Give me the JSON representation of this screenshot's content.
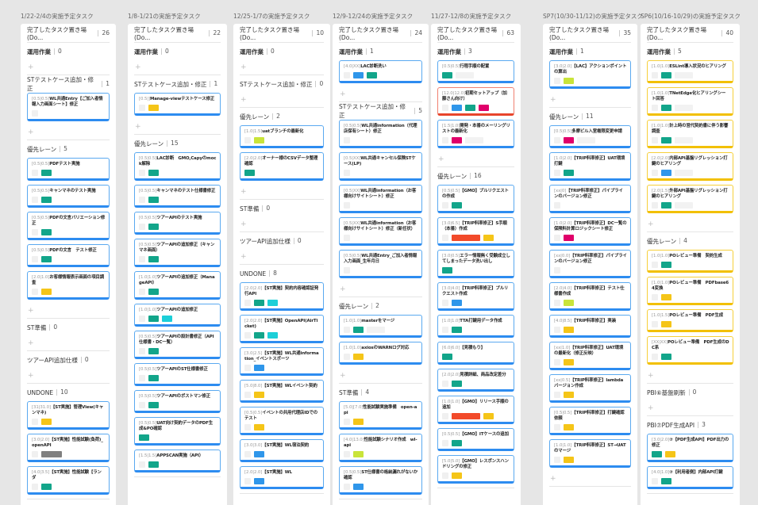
{
  "tag_colors": {
    "g": "#12a58a",
    "y": "#f5c518",
    "b": "#2f96ea",
    "c": "#1ccfd8",
    "l": "#c9e43a",
    "m": "#e0006a",
    "r": "#f24a2a",
    "k": "#808080"
  },
  "columns": [
    {
      "title": "1/22-2/4の実施予定タスク",
      "done_label": "完了したタスク置き場(Do...",
      "done_count": "26",
      "lanes": [
        {
          "name": "運用作業",
          "count": "0",
          "bold": true,
          "cards": [],
          "plus": true
        },
        {
          "name": "STテストケース追加・修正",
          "count": "1",
          "cards": [
            {
              "meta": "[0.5|0.5]",
              "title": "WL共通Entry【ご加入者情報入力画面シート】修正",
              "tags": [
                "s"
              ]
            }
          ],
          "plus": true
        },
        {
          "name": "優先レーン",
          "count": "5",
          "cards": [
            {
              "meta": "[0.5|0.5]",
              "title": "PDFテスト実施",
              "tags": [
                "s",
                "g"
              ]
            },
            {
              "meta": "[0.5|0.5]",
              "title": "キャンマネのテスト実施",
              "tags": [
                "s",
                "g"
              ]
            },
            {
              "meta": "[0.5|0.5]",
              "title": "PDFの文言バリエーション修正",
              "tags": [
                "s",
                "g"
              ]
            },
            {
              "meta": "[0.5|0.5]",
              "title": "PDFの文言　テスト修正",
              "tags": [
                "s",
                "g"
              ]
            },
            {
              "meta": "[2.0|1.0]",
              "title": "お客様情報表示画面の項目調査",
              "tags": [
                "s",
                "y"
              ]
            }
          ],
          "plus": true
        },
        {
          "name": "ST準備",
          "count": "0",
          "cards": [],
          "plus": true
        },
        {
          "name": "ツアーAPI追加仕様",
          "count": "0",
          "cards": [],
          "plus": true
        },
        {
          "name": "UNDONE",
          "count": "10",
          "cards": [
            {
              "meta": "[31|31.0]",
              "title": "【ST実施】管理View(キャンマネ)",
              "tags": [
                "s",
                "y"
              ]
            },
            {
              "meta": "[3.0|2.0]",
              "title": "【ST実施】性能試験(負荷)_openAPI",
              "tags": [
                "s",
                "k"
              ]
            },
            {
              "meta": "[4.0|3.5]",
              "title": "【ST実施】性能試験【ランダ",
              "tags": [
                "s",
                "g"
              ]
            }
          ]
        }
      ]
    },
    {
      "title": "1/8-1/21の実施予定タスク",
      "done_label": "完了したタスク置き場(Do...",
      "done_count": "22",
      "lanes": [
        {
          "name": "運用作業",
          "count": "0",
          "bold": true,
          "cards": [],
          "plus": true
        },
        {
          "name": "STテストケース追加・修正",
          "count": "1",
          "cards": [
            {
              "meta": "[0.5|]",
              "title": "Manage-viewテストケース修正",
              "tags": [
                "s",
                "y"
              ]
            }
          ],
          "plus": true
        },
        {
          "name": "優先レーン",
          "count": "15",
          "cards": [
            {
              "meta": "[0.5|0.5]",
              "title": "LAC診断　GMO,Capyのmock解除",
              "tags": [
                "s",
                "g"
              ]
            },
            {
              "meta": "[0.5|0.5]",
              "title": "キャンマネのテスト仕様書修正",
              "tags": [
                "s",
                "g"
              ]
            },
            {
              "meta": "[0.5|0.5]",
              "title": "ツアーAPIのテスト実施",
              "tags": [
                "s",
                "g"
              ]
            },
            {
              "meta": "[0.5|0.5]",
              "title": "ツアーAPIの追加修正（キャンマネ画面）",
              "tags": [
                "s",
                "g"
              ]
            },
            {
              "meta": "[1.0|1.0]",
              "title": "ツアーAPIの追加修正（ManageAPI）",
              "tags": [
                "s",
                "g"
              ]
            },
            {
              "meta": "[1.0|1.0]",
              "title": "ツアーAPIの追加修正",
              "tags": [
                "s",
                "g",
                "c"
              ]
            },
            {
              "meta": "[0.5|0.5]",
              "title": "ツアーAPIの設計書修正（API仕様書・DC一覧）",
              "tags": [
                "s",
                "g"
              ]
            },
            {
              "meta": "[0.5|0.5]",
              "title": "ツアーAPIのST仕様書修正",
              "tags": [
                "s",
                "g"
              ]
            },
            {
              "meta": "[0.5|0.5]",
              "title": "ツアーAPIのポストマン修正",
              "tags": [
                "s",
                "g"
              ]
            },
            {
              "meta": "[0.5|0.5]",
              "title": "UAT向け契約データのPDF生成&PO確認",
              "tags": [
                "g"
              ]
            },
            {
              "meta": "[1.5|1.5]",
              "title": "APPSCAN実施（API）",
              "tags": [
                "s",
                "g"
              ]
            }
          ]
        }
      ]
    },
    {
      "title": "12/25-1/7の実施予定タスク",
      "done_label": "完了したタスク置き場(Do...",
      "done_count": "10",
      "lanes": [
        {
          "name": "運用作業",
          "count": "0",
          "bold": true,
          "cards": [],
          "plus": true
        },
        {
          "name": "STテストケース追加・修正",
          "count": "0",
          "cards": [],
          "plus": true
        },
        {
          "name": "優先レーン",
          "count": "2",
          "cards": [
            {
              "meta": "[1.0|1.5]",
              "title": "uatブランチの最新化",
              "tags": [
                "s",
                "l"
              ]
            },
            {
              "meta": "[2.0|2.0]",
              "title": "オーナー様のCSVデータ整理確認",
              "tags": [
                "g"
              ]
            }
          ],
          "plus": true
        },
        {
          "name": "ST準備",
          "count": "0",
          "cards": [],
          "plus": true
        },
        {
          "name": "ツアーAPI追加仕様",
          "count": "0",
          "cards": [],
          "plus": true
        },
        {
          "name": "UNDONE",
          "count": "8",
          "cards": [
            {
              "meta": "[2.0|2.0]",
              "title": "【ST実施】契約内容確認証発行API",
              "tags": [
                "s",
                "g",
                "c"
              ]
            },
            {
              "meta": "[2.0|2.0]",
              "title": "【ST実施】OpenAPI(AirTicket)",
              "tags": [
                "s",
                "g",
                "c"
              ]
            },
            {
              "meta": "[3.0|2.5]",
              "title": "【ST実施】WL共通information_イベントスポーツ",
              "tags": [
                "s",
                "b"
              ]
            },
            {
              "meta": "[5.0|8.0]",
              "title": "【ST実施】WLイベント契約",
              "tags": [
                "s",
                "y"
              ]
            },
            {
              "meta": "[0.5|0.5]",
              "title": "イベントの共用代理店IDでのテスト",
              "tags": [
                "s",
                "y"
              ]
            },
            {
              "meta": "[3.0|3.0]",
              "title": "【ST実施】WL宿泊契約",
              "tags": [
                "s",
                "b"
              ]
            },
            {
              "meta": "[2.0|2.0]",
              "title": "【ST実施】WL",
              "tags": [
                "s",
                "b"
              ]
            }
          ]
        }
      ]
    },
    {
      "title": "12/9-12/24の実施予定タスク",
      "done_label": "完了したタスク置き場(Do...",
      "done_count": "24",
      "lanes": [
        {
          "name": "運用作業",
          "count": "1",
          "bold": true,
          "cards": [
            {
              "meta": "[4.0|XX]",
              "title": "LAC診断洗い",
              "tags": [
                "s",
                "b",
                "g"
              ]
            }
          ],
          "plus": true
        },
        {
          "name": "STテストケース追加・修正",
          "count": "5",
          "cards": [
            {
              "meta": "[0.5|0.5]",
              "title": "WL共通information（代理店保有シート）修正",
              "tags": [
                "s"
              ]
            },
            {
              "meta": "[0.5|XX]",
              "title": "WL共通キャンセル保険STケース(LP)",
              "tags": [
                "s"
              ]
            },
            {
              "meta": "[0.5|XX]",
              "title": "WL共通information（お客様向けサイトシート）修正",
              "tags": [
                "s"
              ]
            },
            {
              "meta": "[0.5|XX]",
              "title": "WL共通information（お客様向けサイトシート）修正（新任状）",
              "tags": [
                "s"
              ]
            },
            {
              "meta": "[0.5|0.5]",
              "title": "WL共通Entry_ご加入者情報入力画面_生年月日",
              "tags": [
                "s"
              ]
            }
          ],
          "plus": true
        },
        {
          "name": "優先レーン",
          "count": "2",
          "cards": [
            {
              "meta": "[1.0|1.0]",
              "title": "masterをマージ",
              "tags": [
                "s",
                "g",
                "e"
              ]
            },
            {
              "meta": "[1.0|1.0]",
              "title": "axiosのWARNログ対応",
              "tags": [
                "s",
                "y"
              ]
            }
          ],
          "plus": true
        },
        {
          "name": "ST準備",
          "count": "4",
          "cards": [
            {
              "meta": "[5.0|[7.0]",
              "title": "性能試験実施準備　open-api",
              "tags": [
                "s",
                "y"
              ]
            },
            {
              "meta": "[4.0|13.0]",
              "title": "性能試験シナリオ作成　wl-api",
              "tags": [
                "s",
                "l"
              ]
            },
            {
              "meta": "[0.5|0.5]",
              "title": "ST仕様書の格納漏れがないか確認",
              "tags": [
                "s",
                "b"
              ]
            }
          ]
        }
      ]
    },
    {
      "title": "11/27-12/8の実施予定タスク",
      "done_label": "完了したタスク置き場(Do...",
      "done_count": "63",
      "lanes": [
        {
          "name": "運用作業",
          "count": "3",
          "bold": true,
          "cards": [
            {
              "meta": "[0.5|0.5]",
              "title": "行程手順の配置",
              "tags": [
                "g",
                "e"
              ]
            },
            {
              "meta": "[12.0|12.0]",
              "title": "初期セットアップ（加藤さん向け）",
              "tags": [
                "s",
                "b",
                "g",
                "m"
              ],
              "style": "red"
            },
            {
              "meta": "[1.5|1.0]",
              "title": "開発・本番のメーリングリストの最新化",
              "tags": [
                "s",
                "m",
                "e"
              ]
            }
          ],
          "plus": true
        },
        {
          "name": "優先レーン",
          "count": "16",
          "cards": [
            {
              "meta": "[0.5|0.5]",
              "title": "【GMO】プルリクエストの作成",
              "tags": [
                "s",
                "g"
              ]
            },
            {
              "meta": "[3.0|6.5]",
              "title": "【TRIP料率修正】S手順（本番）作成",
              "tags": [
                "s",
                "rw",
                "y"
              ]
            },
            {
              "meta": "[3.0|0.5]",
              "title": "エラー情報無く受験成立してしまったデータ洗い出し",
              "tags": [
                "g"
              ]
            },
            {
              "meta": "[3.0|4.0]",
              "title": "【TRIP料率修正】プルリクエスト作成",
              "tags": [
                "s",
                "b"
              ]
            },
            {
              "meta": "[1.0|1.0]",
              "title": "TTA打鍵用データ作成",
              "tags": [
                "s",
                "g"
              ]
            },
            {
              "meta": "[6.0|6.0]",
              "title": "【見積もり】",
              "tags": [
                "g"
              ]
            },
            {
              "meta": "[2.0|2.0]",
              "title": "見積詳細、商品改定差分",
              "tags": [
                "s",
                "g"
              ]
            },
            {
              "meta": "[1.0|1.0]",
              "title": "【GMO】リリース手順の追加",
              "tags": [
                "s",
                "rw",
                "y"
              ]
            },
            {
              "meta": "[0.5|0.5]",
              "title": "【GMO】ITケースの追加",
              "tags": [
                "s",
                "g"
              ]
            },
            {
              "meta": "[5.0|5.0]",
              "title": "【GMO】レスポンスハンドリングの修正",
              "tags": [
                "s",
                "y"
              ]
            }
          ]
        }
      ]
    },
    {
      "title": "SP7(10/30-11/12)の実施予定タスク",
      "done_label": "完了したタスク置き場(Do...",
      "done_count": "35",
      "lanes": [
        {
          "name": "運用作業",
          "count": "1",
          "bold": true,
          "cards": [
            {
              "meta": "[3.0|2.0]",
              "title": "【LAC】アクションポイントの算出",
              "tags": [
                "s",
                "l"
              ]
            }
          ],
          "plus": true
        },
        {
          "name": "優先レーン",
          "count": "11",
          "cards": [
            {
              "meta": "[0.5|0.5]",
              "title": "多摩ビル入室権限変更申請",
              "tags": [
                "s",
                "m",
                "e"
              ]
            },
            {
              "meta": "[1.0|2.0]",
              "title": "【TRIP料率修正】UAT環境打鍵",
              "tags": [
                "s",
                "g"
              ]
            },
            {
              "meta": "[xx|0]",
              "title": "【TRIP料率修正】パイプラインのバージョン修正",
              "tags": [
                "s"
              ]
            },
            {
              "meta": "[1.0|2.0]",
              "title": "【TRIP料率修正】DC一覧の保険料計算ロジックシート修正",
              "tags": [
                "s",
                "m"
              ]
            },
            {
              "meta": "[xx|0.0]",
              "title": "【TRIP料率修正】パイプラインのバージョン修正",
              "tags": [
                "s"
              ]
            },
            {
              "meta": "[2.0|4.0]",
              "title": "【TRIP料率修正】テスト仕様書作成",
              "tags": [
                "s",
                "l"
              ]
            },
            {
              "meta": "[4.0|8.5]",
              "title": "【TRIP料率修正】実装",
              "tags": [
                "s",
                "y"
              ]
            },
            {
              "meta": "[xx|1.0]",
              "title": "【TRIP料率修正】UAT環境の最新化（修正反映）",
              "tags": [
                "s",
                "y"
              ]
            },
            {
              "meta": "[xx|0.5]",
              "title": "【TRIP料率修正】lambdaバージョン作成",
              "tags": [
                "s",
                "y"
              ]
            },
            {
              "meta": "[0.5|0.5]",
              "title": "【TRIP料率修正】打鍵確認依頼",
              "tags": [
                "s",
                "y"
              ]
            },
            {
              "meta": "[1.0|1.0]",
              "title": "【TRIP料率修正】ST→UATのマージ",
              "tags": [
                "s",
                "y"
              ]
            }
          ],
          "plus": true
        }
      ]
    },
    {
      "title": "SP6(10/16-10/29)の実施予定タスク",
      "done_label": "完了したタスク置き場(Do...",
      "done_count": "40",
      "lanes": [
        {
          "name": "運用作業",
          "count": "5",
          "bold": true,
          "cards": [
            {
              "meta": "[1.0|1.0]",
              "title": "ESLint導入状況のヒアリング",
              "tags": [
                "s",
                "g",
                "e"
              ],
              "style": "yellow"
            },
            {
              "meta": "[1.0|1.0]",
              "title": "TNetEdge化ヒアリングシート回答",
              "tags": [
                "s",
                "g",
                "e"
              ],
              "style": "yellow"
            },
            {
              "meta": "[1.0|1.0]",
              "title": "計上時の営代契約書に伴う影響調査",
              "tags": [
                "s",
                "g",
                "e"
              ],
              "style": "yellow"
            },
            {
              "meta": "[2.0|2.0]",
              "title": "内部API基盤リグレッション打鍵のヒアリング",
              "tags": [
                "s",
                "b",
                "e"
              ],
              "style": "yellow"
            },
            {
              "meta": "[2.0|1.5]",
              "title": "外部API基盤リグレッション打鍵のヒアリング",
              "tags": [
                "s",
                "g",
                "e"
              ],
              "style": "yellow"
            }
          ],
          "plus": true
        },
        {
          "name": "優先レーン",
          "count": "4",
          "cards": [
            {
              "meta": "[1.0|1.0]",
              "title": "POレビュー準備　契約生成",
              "tags": [
                "s",
                "g"
              ],
              "style": "yellow"
            },
            {
              "meta": "[1.0|1.0]",
              "title": "POレビュー準備　PDFbase64変換",
              "tags": [
                "s",
                "y"
              ],
              "style": "yellow"
            },
            {
              "meta": "[1.0|1.5]",
              "title": "POレビュー準備　PDF生成",
              "tags": [
                "s",
                "y"
              ],
              "style": "yellow"
            },
            {
              "meta": "[XX|XX]",
              "title": "POレビュー準備　PDF生成のDC系",
              "tags": [
                "s",
                "g"
              ],
              "style": "yellow"
            }
          ],
          "plus": true
        },
        {
          "name": "PBI⑥基盤刷新",
          "count": "0",
          "cards": [],
          "plus": true
        },
        {
          "name": "PBI⑦PDF生成API",
          "count": "3",
          "cards": [
            {
              "meta": "[3.0|2.0]",
              "title": "⑦【PDF生成API】PDF出力の修正",
              "tags": [
                "g",
                "y"
              ]
            },
            {
              "meta": "[4.0|1.0]",
              "title": "⑦【利用者側】内部API打鍵",
              "tags": [
                "s",
                "g"
              ]
            }
          ]
        }
      ]
    }
  ]
}
